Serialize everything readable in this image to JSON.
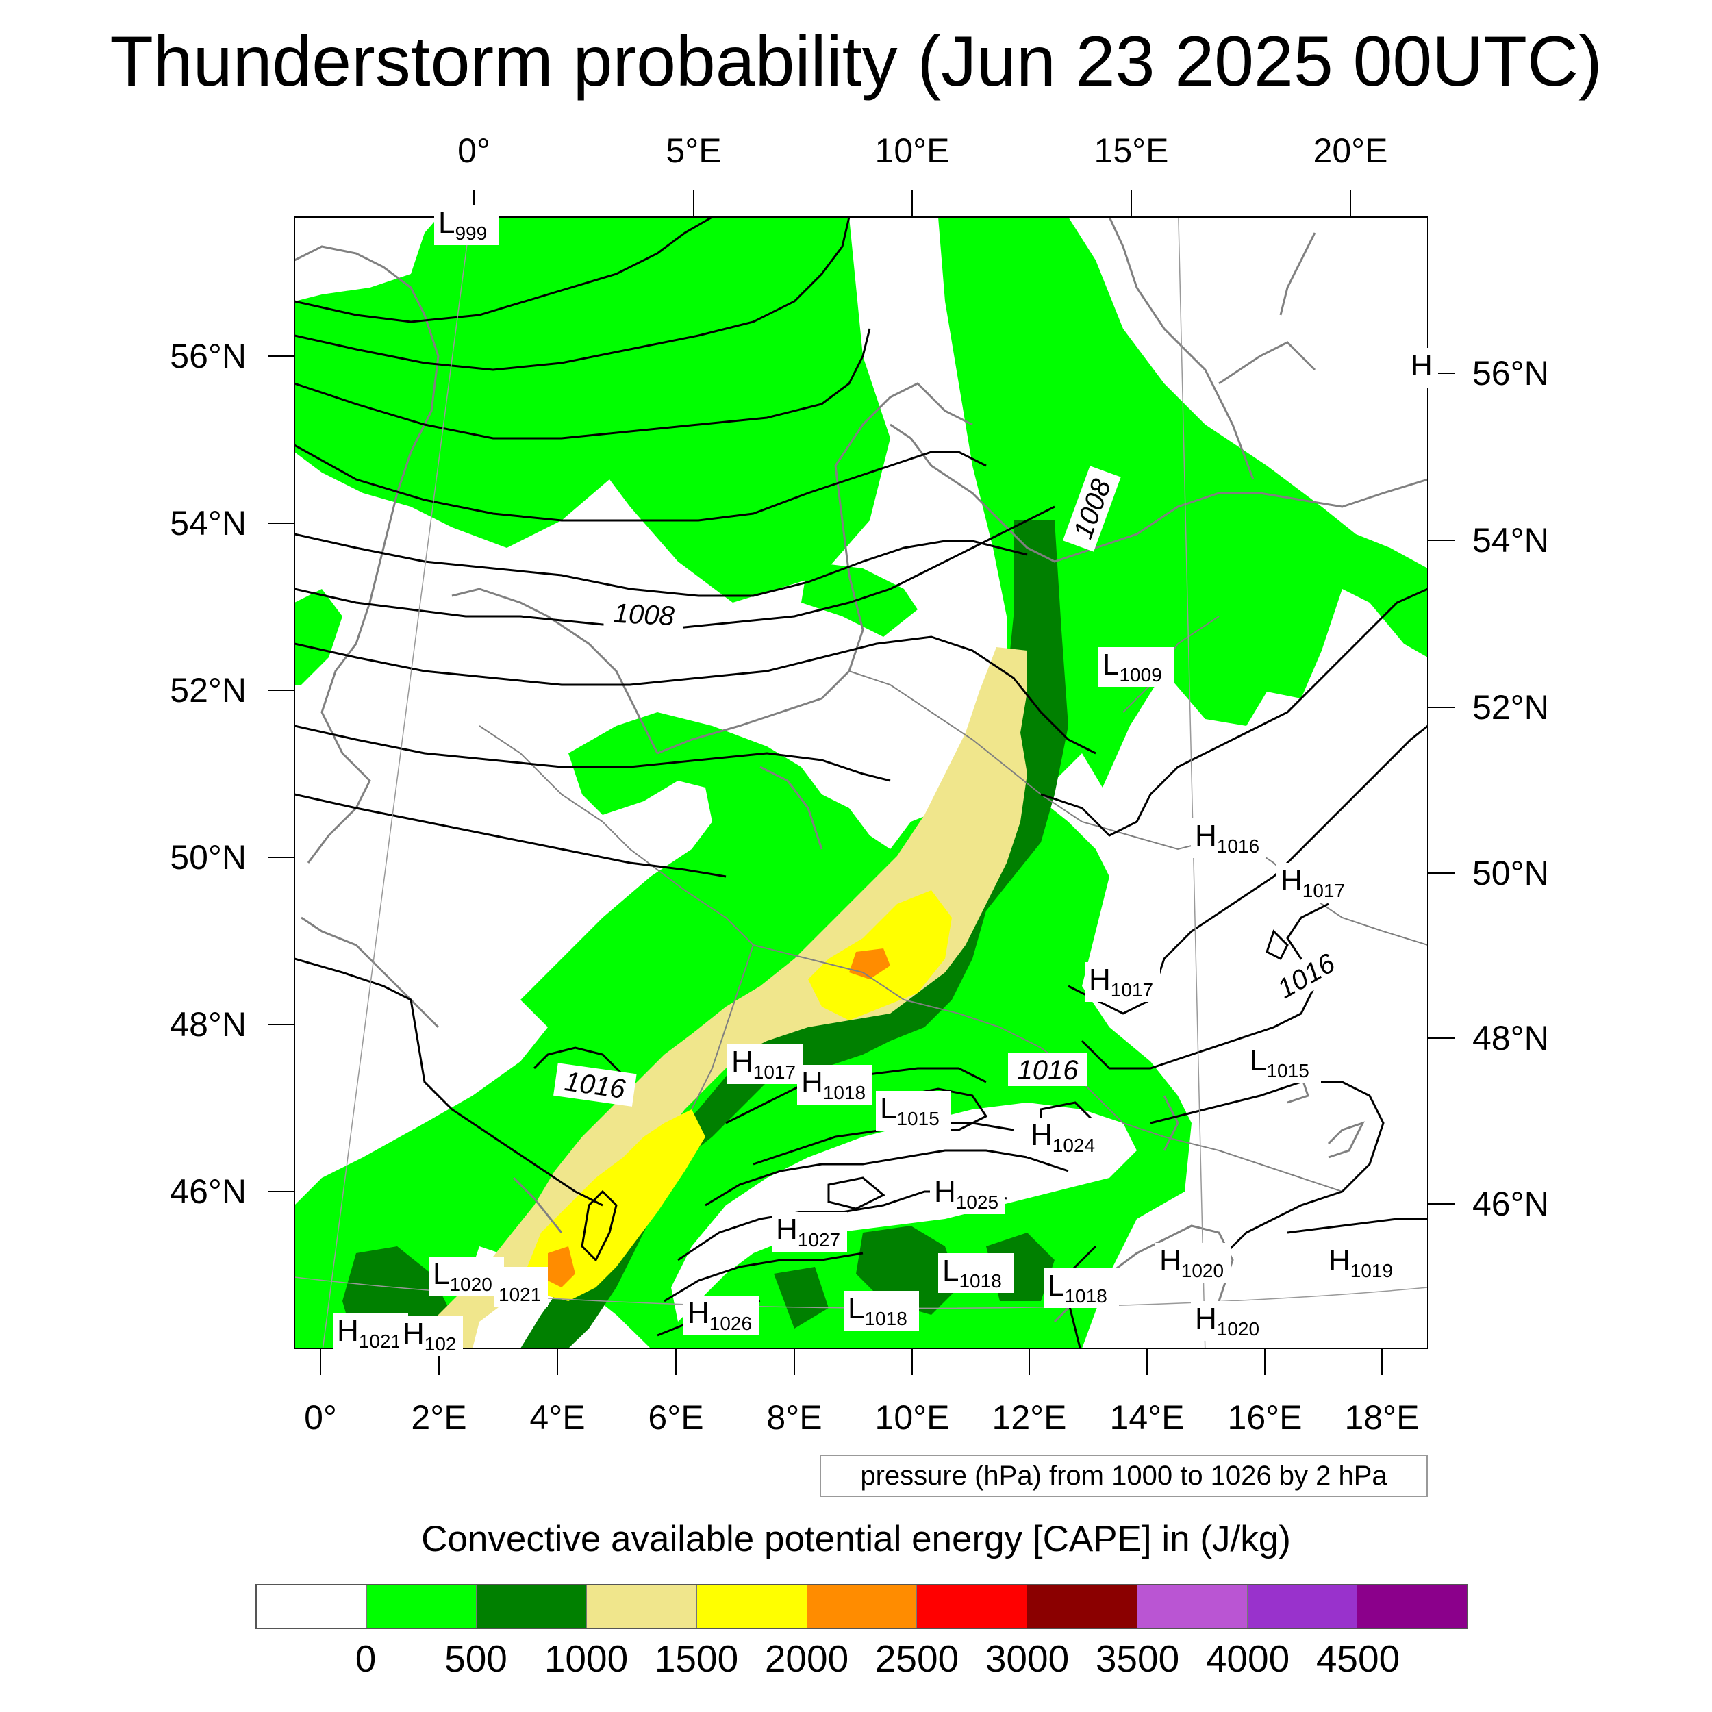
{
  "title": "Thunderstorm probability (Jun 23 2025 00UTC)",
  "top_lon_labels": [
    "0°",
    "5°E",
    "10°E",
    "15°E",
    "20°E"
  ],
  "bottom_lon_labels": [
    "0°",
    "2°E",
    "4°E",
    "6°E",
    "8°E",
    "10°E",
    "12°E",
    "14°E",
    "16°E",
    "18°E"
  ],
  "left_lat_labels": [
    "56°N",
    "54°N",
    "52°N",
    "50°N",
    "48°N",
    "46°N"
  ],
  "right_lat_labels": [
    "56°N",
    "54°N",
    "52°N",
    "50°N",
    "48°N",
    "46°N"
  ],
  "isobar_labels": [
    {
      "text": "1008",
      "rotate": -70
    },
    {
      "text": "1008",
      "rotate": 3
    },
    {
      "text": "1016",
      "rotate": 8
    },
    {
      "text": "1016",
      "rotate": 0
    },
    {
      "text": "1016",
      "rotate": -30
    }
  ],
  "pressure_centers": [
    {
      "type": "L",
      "value": "999"
    },
    {
      "type": "L",
      "value": "1009"
    },
    {
      "type": "H",
      "value": "1016"
    },
    {
      "type": "H",
      "value": "1017"
    },
    {
      "type": "H",
      "value": "1017"
    },
    {
      "type": "H",
      "value": "1017"
    },
    {
      "type": "H",
      "value": "1018"
    },
    {
      "type": "L",
      "value": "1015"
    },
    {
      "type": "L",
      "value": "1015"
    },
    {
      "type": "H",
      "value": "1024"
    },
    {
      "type": "H",
      "value": "1025"
    },
    {
      "type": "H",
      "value": "1027"
    },
    {
      "type": "L",
      "value": "1018"
    },
    {
      "type": "L",
      "value": "1018"
    },
    {
      "type": "L",
      "value": "1018"
    },
    {
      "type": "H",
      "value": "1020"
    },
    {
      "type": "H",
      "value": "1020"
    },
    {
      "type": "H",
      "value": "1019"
    },
    {
      "type": "L",
      "value": "1020"
    },
    {
      "type": "",
      "value": "1021"
    },
    {
      "type": "H",
      "value": "1026"
    },
    {
      "type": "H",
      "value": "1021"
    },
    {
      "type": "H",
      "value": "102"
    },
    {
      "type": "H",
      "value": ""
    }
  ],
  "pressure_note": "pressure (hPa) from 1000 to 1026 by 2 hPa",
  "colorbar": {
    "title": "Convective available potential energy [CAPE] in (J/kg)",
    "colors": [
      "#ffffff",
      "#00ff00",
      "#008000",
      "#f0e68c",
      "#ffff00",
      "#ff8c00",
      "#ff0000",
      "#8b0000",
      "#ba55d3",
      "#9932cc",
      "#8b008b"
    ],
    "tick_labels": [
      "0",
      "500",
      "1000",
      "1500",
      "2000",
      "2500",
      "3000",
      "3500",
      "4000",
      "4500"
    ]
  },
  "colors": {
    "land_outline": "#808080",
    "isobar": "#000000",
    "gridline": "#999999"
  }
}
